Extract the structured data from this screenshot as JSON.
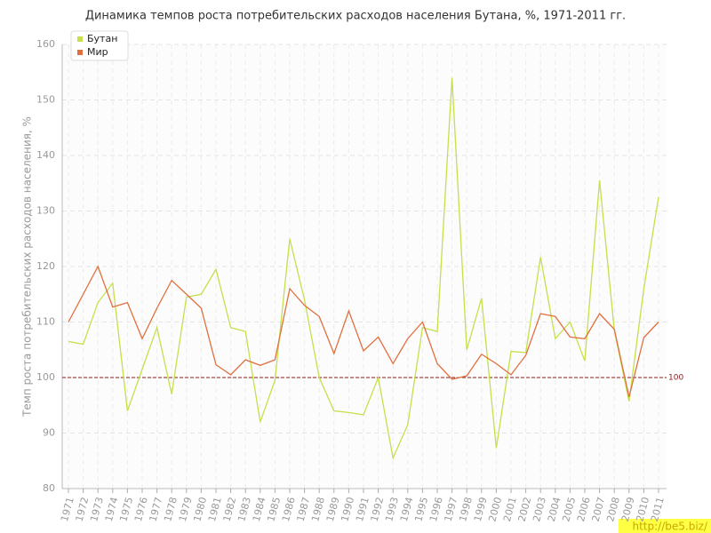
{
  "chart_data": {
    "type": "line",
    "title": "Динамика темпов роста потребительских расходов населения Бутана, %, 1971-2011 гг.",
    "y_label": "Темп роста потребительских расходов населения, %",
    "categories": [
      "1971",
      "1972",
      "1973",
      "1974",
      "1975",
      "1976",
      "1977",
      "1978",
      "1979",
      "1980",
      "1981",
      "1982",
      "1983",
      "1984",
      "1985",
      "1986",
      "1987",
      "1988",
      "1989",
      "1990",
      "1991",
      "1992",
      "1993",
      "1994",
      "1995",
      "1996",
      "1997",
      "1998",
      "1999",
      "2000",
      "2001",
      "2002",
      "2003",
      "2004",
      "2005",
      "2006",
      "2007",
      "2008",
      "2009",
      "2010",
      "2011"
    ],
    "series": [
      {
        "name": "Бутан",
        "color": "#c5e04a",
        "values": [
          106.5,
          106,
          113.5,
          117,
          94,
          101.5,
          109,
          97,
          114.5,
          115,
          119.5,
          109,
          108.3,
          92,
          99.5,
          125,
          114,
          100,
          94,
          93.7,
          93.3,
          100,
          85.5,
          91.5,
          109,
          108.3,
          154,
          105,
          114.3,
          87.3,
          104.7,
          104.5,
          121.7,
          107,
          110,
          103,
          135.5,
          108.5,
          95.7,
          116,
          132.5
        ]
      },
      {
        "name": "Мир",
        "color": "#e0703f",
        "values": [
          110,
          115,
          120,
          112.7,
          113.5,
          107,
          112.5,
          117.5,
          115,
          112.5,
          102.3,
          100.5,
          103.2,
          102.2,
          103.2,
          116,
          113,
          111,
          104.3,
          112,
          104.8,
          107.3,
          102.5,
          107,
          110,
          102.5,
          99.7,
          100.3,
          104.2,
          102.5,
          100.5,
          104,
          111.5,
          111,
          107.3,
          107,
          111.5,
          108.7,
          96.5,
          107.2,
          110
        ]
      }
    ],
    "ylim": [
      80,
      160
    ],
    "yticks": [
      80,
      90,
      100,
      110,
      120,
      130,
      140,
      150,
      160
    ],
    "reference_line": 100,
    "reference_color": "#8b1a1a",
    "grid": true,
    "legend": "top-left",
    "watermark": "http://be5.biz/"
  }
}
